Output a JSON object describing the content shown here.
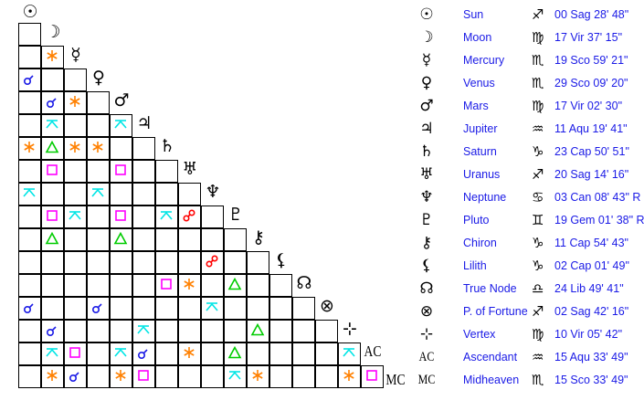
{
  "colors": {
    "conjunction": "#1a1ae6",
    "sextile": "#ff8000",
    "square": "#ff00ff",
    "trine": "#00cc00",
    "opposition": "#ff0000",
    "quincunx": "#00e5e5"
  },
  "points": [
    {
      "glyph": "☉",
      "name": "Sun",
      "sign": "♐",
      "pos": "00 Sag 28' 48\""
    },
    {
      "glyph": "☽",
      "name": "Moon",
      "sign": "♍",
      "pos": "17 Vir 37' 15\""
    },
    {
      "glyph": "☿",
      "name": "Mercury",
      "sign": "♏",
      "pos": "19 Sco 59' 21\""
    },
    {
      "glyph": "♀",
      "name": "Venus",
      "sign": "♏",
      "pos": "29 Sco 09' 20\""
    },
    {
      "glyph": "♂",
      "name": "Mars",
      "sign": "♍",
      "pos": "17 Vir 02' 30\""
    },
    {
      "glyph": "♃",
      "name": "Jupiter",
      "sign": "♒",
      "pos": "11 Aqu 19' 41\""
    },
    {
      "glyph": "♄",
      "name": "Saturn",
      "sign": "♑",
      "pos": "23 Cap 50' 51\""
    },
    {
      "glyph": "♅",
      "name": "Uranus",
      "sign": "♐",
      "pos": "20 Sag 14' 16\""
    },
    {
      "glyph": "♆",
      "name": "Neptune",
      "sign": "♋",
      "pos": "03 Can 08' 43\" R"
    },
    {
      "glyph": "♇",
      "name": "Pluto",
      "sign": "♊",
      "pos": "19 Gem 01' 38\" R"
    },
    {
      "glyph": "⚷",
      "name": "Chiron",
      "sign": "♑",
      "pos": "11 Cap 54' 43\""
    },
    {
      "glyph": "⚸",
      "name": "Lilith",
      "sign": "♑",
      "pos": "02 Cap 01' 49\""
    },
    {
      "glyph": "☊",
      "name": "True Node",
      "sign": "♎",
      "pos": "24 Lib 49' 41\""
    },
    {
      "glyph": "⊗",
      "name": "P. of Fortune",
      "sign": "♐",
      "pos": "02 Sag 42' 16\""
    },
    {
      "glyph": "⊹",
      "name": "Vertex",
      "sign": "♍",
      "pos": "10 Vir 05' 42\""
    },
    {
      "glyph": "AC",
      "name": "Ascendant",
      "sign": "♒",
      "pos": "15 Aqu 33' 49\""
    },
    {
      "glyph": "MC",
      "name": "Midheaven",
      "sign": "♏",
      "pos": "15 Sco 33' 49\""
    }
  ],
  "aspects": [
    [
      2,
      1,
      "sextile"
    ],
    [
      3,
      0,
      "conjunction"
    ],
    [
      4,
      1,
      "conjunction"
    ],
    [
      4,
      2,
      "sextile"
    ],
    [
      5,
      1,
      "quincunx"
    ],
    [
      5,
      4,
      "quincunx"
    ],
    [
      6,
      0,
      "sextile"
    ],
    [
      6,
      1,
      "trine"
    ],
    [
      6,
      2,
      "sextile"
    ],
    [
      6,
      3,
      "sextile"
    ],
    [
      7,
      1,
      "square"
    ],
    [
      7,
      4,
      "square"
    ],
    [
      8,
      0,
      "quincunx"
    ],
    [
      8,
      3,
      "quincunx"
    ],
    [
      9,
      1,
      "square"
    ],
    [
      9,
      2,
      "quincunx"
    ],
    [
      9,
      4,
      "square"
    ],
    [
      9,
      6,
      "quincunx"
    ],
    [
      9,
      7,
      "opposition"
    ],
    [
      10,
      1,
      "trine"
    ],
    [
      10,
      4,
      "trine"
    ],
    [
      11,
      8,
      "opposition"
    ],
    [
      12,
      6,
      "square"
    ],
    [
      12,
      7,
      "sextile"
    ],
    [
      12,
      9,
      "trine"
    ],
    [
      13,
      0,
      "conjunction"
    ],
    [
      13,
      3,
      "conjunction"
    ],
    [
      13,
      8,
      "quincunx"
    ],
    [
      14,
      1,
      "conjunction"
    ],
    [
      14,
      5,
      "quincunx"
    ],
    [
      14,
      10,
      "trine"
    ],
    [
      15,
      1,
      "quincunx"
    ],
    [
      15,
      2,
      "square"
    ],
    [
      15,
      4,
      "quincunx"
    ],
    [
      15,
      5,
      "conjunction"
    ],
    [
      15,
      7,
      "sextile"
    ],
    [
      15,
      9,
      "trine"
    ],
    [
      15,
      14,
      "quincunx"
    ],
    [
      16,
      1,
      "sextile"
    ],
    [
      16,
      2,
      "conjunction"
    ],
    [
      16,
      4,
      "sextile"
    ],
    [
      16,
      5,
      "square"
    ],
    [
      16,
      9,
      "quincunx"
    ],
    [
      16,
      10,
      "sextile"
    ],
    [
      16,
      14,
      "sextile"
    ],
    [
      16,
      15,
      "square"
    ]
  ]
}
